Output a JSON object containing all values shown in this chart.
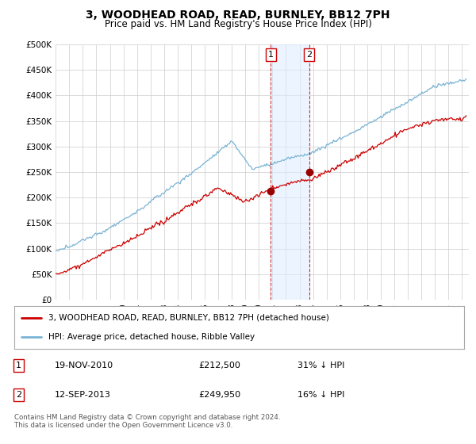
{
  "title": "3, WOODHEAD ROAD, READ, BURNLEY, BB12 7PH",
  "subtitle": "Price paid vs. HM Land Registry's House Price Index (HPI)",
  "ylabel_ticks": [
    "£0",
    "£50K",
    "£100K",
    "£150K",
    "£200K",
    "£250K",
    "£300K",
    "£350K",
    "£400K",
    "£450K",
    "£500K"
  ],
  "ytick_values": [
    0,
    50000,
    100000,
    150000,
    200000,
    250000,
    300000,
    350000,
    400000,
    450000,
    500000
  ],
  "ylim": [
    0,
    500000
  ],
  "xlim_start": 1995.0,
  "xlim_end": 2025.5,
  "hpi_color": "#7ab3d4",
  "property_color": "#cc0000",
  "marker_color": "#990000",
  "transaction1_x": 2010.88,
  "transaction1_y": 212500,
  "transaction1_label": "1",
  "transaction1_date": "19-NOV-2010",
  "transaction1_price": "£212,500",
  "transaction1_hpi": "31% ↓ HPI",
  "transaction2_x": 2013.7,
  "transaction2_y": 249950,
  "transaction2_label": "2",
  "transaction2_date": "12-SEP-2013",
  "transaction2_price": "£249,950",
  "transaction2_hpi": "16% ↓ HPI",
  "legend_line1": "3, WOODHEAD ROAD, READ, BURNLEY, BB12 7PH (detached house)",
  "legend_line2": "HPI: Average price, detached house, Ribble Valley",
  "footer": "Contains HM Land Registry data © Crown copyright and database right 2024.\nThis data is licensed under the Open Government Licence v3.0.",
  "background_color": "#ffffff",
  "grid_color": "#cccccc",
  "highlight_fill": "#ddeeff"
}
